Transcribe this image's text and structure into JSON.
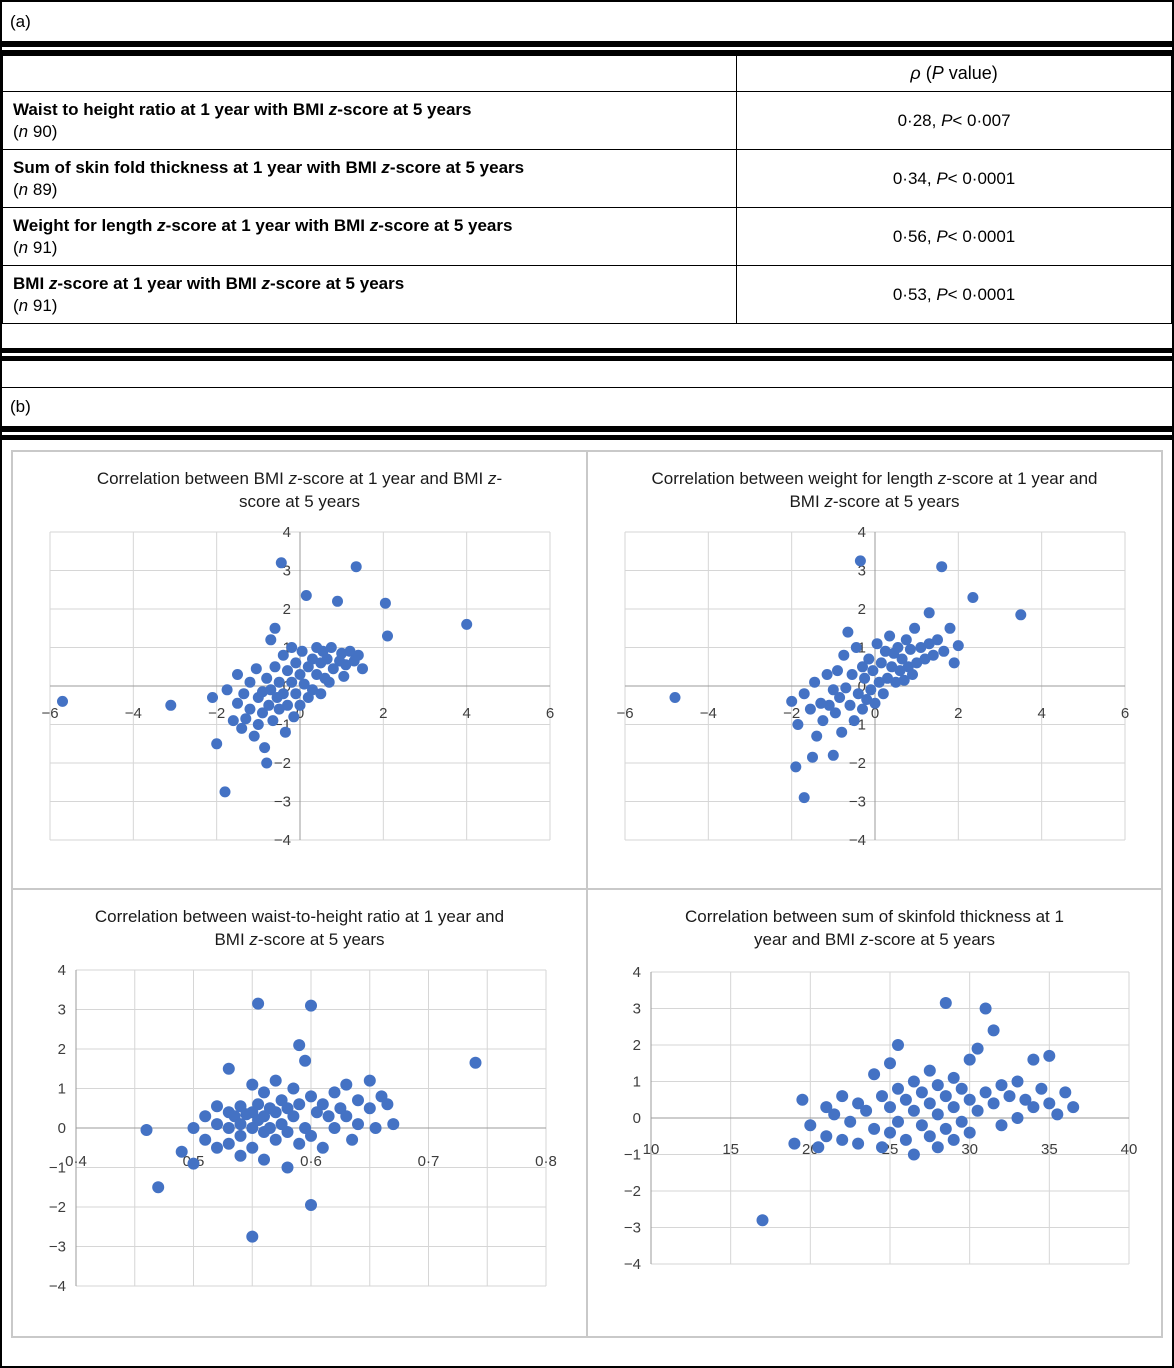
{
  "figure": {
    "panel_a_label": "(a)",
    "panel_b_label": "(b)"
  },
  "style": {
    "dot_color": "#4472C4",
    "grid_color": "#D6D6D6",
    "axis_line_color": "#9B9B9B",
    "axis_text_color": "#3d3d3d"
  },
  "table": {
    "header": "ρ (P value)",
    "rows": [
      {
        "label": "Waist to height ratio at 1 year with BMI z-score at 5 years",
        "n": "(n 90)",
        "value": "0·28, P< 0·007"
      },
      {
        "label": "Sum of skin fold thickness at 1 year with BMI z-score at 5 years",
        "n": "(n 89)",
        "value": "0·34, P< 0·0001"
      },
      {
        "label": "Weight for length z-score at 1 year with BMI z-score at 5 years",
        "n": "(n 91)",
        "value": "0·56, P< 0·0001"
      },
      {
        "label": "BMI z-score at 1 year with BMI z-score at 5 years",
        "n": "(n 91)",
        "value": "0·53, P< 0·0001"
      }
    ]
  },
  "chart_data": [
    {
      "type": "scatter",
      "title": "Correlation between BMI z-score at 1 year and BMI z-score at 5 years",
      "xlabel": "",
      "ylabel": "",
      "xlim": [
        -6,
        6
      ],
      "ylim": [
        -4,
        4
      ],
      "xticks": [
        -6,
        -4,
        -2,
        0,
        2,
        4,
        6
      ],
      "yticks": [
        -4,
        -3,
        -2,
        -1,
        0,
        1,
        2,
        3,
        4
      ],
      "grid_x_step": 2,
      "grid_y_step": 1,
      "x_tick_format": "int",
      "axis_label_position": "center",
      "grid": true,
      "legend": false,
      "points": [
        [
          -5.7,
          -0.4
        ],
        [
          -3.1,
          -0.5
        ],
        [
          -2.1,
          -0.3
        ],
        [
          -2.0,
          -1.5
        ],
        [
          -1.8,
          -2.75
        ],
        [
          -1.75,
          -0.1
        ],
        [
          -1.6,
          -0.9
        ],
        [
          -1.5,
          0.3
        ],
        [
          -1.5,
          -0.45
        ],
        [
          -1.4,
          -1.1
        ],
        [
          -1.35,
          -0.2
        ],
        [
          -1.3,
          -0.85
        ],
        [
          -1.2,
          0.1
        ],
        [
          -1.2,
          -0.6
        ],
        [
          -1.1,
          -1.3
        ],
        [
          -1.05,
          0.45
        ],
        [
          -1.0,
          -0.3
        ],
        [
          -1.0,
          -1.0
        ],
        [
          -0.9,
          -0.15
        ],
        [
          -0.9,
          -0.7
        ],
        [
          -0.85,
          -1.6
        ],
        [
          -0.8,
          0.2
        ],
        [
          -0.8,
          -2.0
        ],
        [
          -0.75,
          -0.5
        ],
        [
          -0.7,
          1.2
        ],
        [
          -0.7,
          -0.1
        ],
        [
          -0.65,
          -0.9
        ],
        [
          -0.6,
          1.5
        ],
        [
          -0.6,
          0.5
        ],
        [
          -0.55,
          -0.3
        ],
        [
          -0.45,
          3.2
        ],
        [
          -0.5,
          0.1
        ],
        [
          -0.5,
          -0.6
        ],
        [
          -0.4,
          0.8
        ],
        [
          -0.4,
          -0.2
        ],
        [
          -0.35,
          -1.2
        ],
        [
          -0.3,
          0.4
        ],
        [
          -0.3,
          -0.5
        ],
        [
          -0.2,
          1.0
        ],
        [
          -0.2,
          0.1
        ],
        [
          -0.15,
          -0.8
        ],
        [
          -0.1,
          0.6
        ],
        [
          -0.1,
          -0.2
        ],
        [
          0.0,
          0.3
        ],
        [
          0.0,
          -0.5
        ],
        [
          0.05,
          0.9
        ],
        [
          0.1,
          0.05
        ],
        [
          0.15,
          2.35
        ],
        [
          0.2,
          0.5
        ],
        [
          0.2,
          -0.3
        ],
        [
          0.3,
          0.7
        ],
        [
          0.3,
          -0.1
        ],
        [
          0.4,
          1.0
        ],
        [
          0.4,
          0.3
        ],
        [
          0.5,
          0.6
        ],
        [
          0.5,
          -0.2
        ],
        [
          0.55,
          0.9
        ],
        [
          0.6,
          0.2
        ],
        [
          0.65,
          0.7
        ],
        [
          0.7,
          0.1
        ],
        [
          0.75,
          1.0
        ],
        [
          0.8,
          0.45
        ],
        [
          0.9,
          2.2
        ],
        [
          0.95,
          0.65
        ],
        [
          1.0,
          0.85
        ],
        [
          1.05,
          0.25
        ],
        [
          1.1,
          0.55
        ],
        [
          1.2,
          0.9
        ],
        [
          1.3,
          0.65
        ],
        [
          1.35,
          3.1
        ],
        [
          1.4,
          0.8
        ],
        [
          1.5,
          0.45
        ],
        [
          2.05,
          2.15
        ],
        [
          2.1,
          1.3
        ],
        [
          4.0,
          1.6
        ]
      ]
    },
    {
      "type": "scatter",
      "title": "Correlation between weight for length z-score at 1 year and BMI z-score at 5 years",
      "xlabel": "",
      "ylabel": "",
      "xlim": [
        -6,
        6
      ],
      "ylim": [
        -4,
        4
      ],
      "xticks": [
        -6,
        -4,
        -2,
        0,
        2,
        4,
        6
      ],
      "yticks": [
        -4,
        -3,
        -2,
        -1,
        0,
        1,
        2,
        3,
        4
      ],
      "grid_x_step": 2,
      "grid_y_step": 1,
      "x_tick_format": "int",
      "axis_label_position": "center",
      "grid": true,
      "legend": false,
      "points": [
        [
          -4.8,
          -0.3
        ],
        [
          -2.0,
          -0.4
        ],
        [
          -1.9,
          -2.1
        ],
        [
          -1.85,
          -1.0
        ],
        [
          -1.7,
          -2.9
        ],
        [
          -1.7,
          -0.2
        ],
        [
          -1.55,
          -0.6
        ],
        [
          -1.5,
          -1.85
        ],
        [
          -1.45,
          0.1
        ],
        [
          -1.4,
          -1.3
        ],
        [
          -1.3,
          -0.45
        ],
        [
          -1.25,
          -0.9
        ],
        [
          -1.15,
          0.3
        ],
        [
          -1.1,
          -0.5
        ],
        [
          -1.0,
          -1.8
        ],
        [
          -1.0,
          -0.1
        ],
        [
          -0.95,
          -0.7
        ],
        [
          -0.9,
          0.4
        ],
        [
          -0.85,
          -0.3
        ],
        [
          -0.8,
          -1.2
        ],
        [
          -0.75,
          0.8
        ],
        [
          -0.7,
          -0.05
        ],
        [
          -0.65,
          1.4
        ],
        [
          -0.6,
          -0.5
        ],
        [
          -0.55,
          0.3
        ],
        [
          -0.5,
          -0.9
        ],
        [
          -0.45,
          1.0
        ],
        [
          -0.4,
          -0.2
        ],
        [
          -0.35,
          3.25
        ],
        [
          -0.3,
          0.5
        ],
        [
          -0.3,
          -0.6
        ],
        [
          -0.25,
          0.2
        ],
        [
          -0.2,
          -0.35
        ],
        [
          -0.15,
          0.7
        ],
        [
          -0.1,
          -0.1
        ],
        [
          -0.05,
          0.4
        ],
        [
          0.0,
          -0.45
        ],
        [
          0.05,
          1.1
        ],
        [
          0.1,
          0.1
        ],
        [
          0.15,
          0.6
        ],
        [
          0.2,
          -0.2
        ],
        [
          0.25,
          0.9
        ],
        [
          0.3,
          0.2
        ],
        [
          0.35,
          1.3
        ],
        [
          0.4,
          0.5
        ],
        [
          0.45,
          0.85
        ],
        [
          0.5,
          0.1
        ],
        [
          0.55,
          1.0
        ],
        [
          0.6,
          0.4
        ],
        [
          0.65,
          0.7
        ],
        [
          0.7,
          0.15
        ],
        [
          0.75,
          1.2
        ],
        [
          0.8,
          0.5
        ],
        [
          0.85,
          0.95
        ],
        [
          0.9,
          0.3
        ],
        [
          0.95,
          1.5
        ],
        [
          1.0,
          0.6
        ],
        [
          1.1,
          1.0
        ],
        [
          1.2,
          0.7
        ],
        [
          1.3,
          1.9
        ],
        [
          1.3,
          1.1
        ],
        [
          1.4,
          0.8
        ],
        [
          1.5,
          1.2
        ],
        [
          1.6,
          3.1
        ],
        [
          1.65,
          0.9
        ],
        [
          1.8,
          1.5
        ],
        [
          1.9,
          0.6
        ],
        [
          2.0,
          1.05
        ],
        [
          2.35,
          2.3
        ],
        [
          3.5,
          1.85
        ]
      ]
    },
    {
      "type": "scatter",
      "title": "Correlation between waist-to-height ratio at 1 year and BMI z-score at 5 years",
      "xlabel": "",
      "ylabel": "",
      "xlim": [
        0.4,
        0.8
      ],
      "ylim": [
        -4,
        4
      ],
      "xticks": [
        0.4,
        0.5,
        0.6,
        0.7,
        0.8
      ],
      "yticks": [
        -4,
        -3,
        -2,
        -1,
        0,
        1,
        2,
        3,
        4
      ],
      "grid_x_step": 0.05,
      "grid_y_step": 1,
      "x_tick_format": "middot",
      "axis_label_position": "left",
      "grid": true,
      "legend": false,
      "points": [
        [
          0.46,
          -0.05
        ],
        [
          0.47,
          -1.5
        ],
        [
          0.49,
          -0.6
        ],
        [
          0.5,
          0.0
        ],
        [
          0.5,
          -0.9
        ],
        [
          0.51,
          0.3
        ],
        [
          0.51,
          -0.3
        ],
        [
          0.52,
          0.55
        ],
        [
          0.52,
          0.1
        ],
        [
          0.52,
          -0.5
        ],
        [
          0.53,
          1.5
        ],
        [
          0.53,
          0.4
        ],
        [
          0.53,
          0.0
        ],
        [
          0.53,
          -0.4
        ],
        [
          0.535,
          0.3
        ],
        [
          0.54,
          0.55
        ],
        [
          0.54,
          0.1
        ],
        [
          0.54,
          -0.2
        ],
        [
          0.54,
          -0.7
        ],
        [
          0.545,
          0.35
        ],
        [
          0.55,
          1.1
        ],
        [
          0.55,
          0.4
        ],
        [
          0.55,
          0.0
        ],
        [
          0.55,
          -0.5
        ],
        [
          0.55,
          -2.75
        ],
        [
          0.555,
          3.15
        ],
        [
          0.555,
          0.6
        ],
        [
          0.555,
          0.2
        ],
        [
          0.56,
          0.9
        ],
        [
          0.56,
          0.3
        ],
        [
          0.56,
          -0.1
        ],
        [
          0.56,
          -0.8
        ],
        [
          0.565,
          0.5
        ],
        [
          0.565,
          0.0
        ],
        [
          0.57,
          1.2
        ],
        [
          0.57,
          0.4
        ],
        [
          0.57,
          -0.3
        ],
        [
          0.575,
          0.7
        ],
        [
          0.575,
          0.1
        ],
        [
          0.58,
          0.5
        ],
        [
          0.58,
          -0.1
        ],
        [
          0.58,
          -1.0
        ],
        [
          0.585,
          1.0
        ],
        [
          0.585,
          0.3
        ],
        [
          0.59,
          2.1
        ],
        [
          0.59,
          0.6
        ],
        [
          0.59,
          -0.4
        ],
        [
          0.595,
          1.7
        ],
        [
          0.595,
          0.0
        ],
        [
          0.6,
          3.1
        ],
        [
          0.6,
          0.8
        ],
        [
          0.6,
          -0.2
        ],
        [
          0.6,
          -1.95
        ],
        [
          0.605,
          0.4
        ],
        [
          0.61,
          0.6
        ],
        [
          0.61,
          -0.5
        ],
        [
          0.615,
          0.3
        ],
        [
          0.62,
          0.9
        ],
        [
          0.62,
          0.0
        ],
        [
          0.625,
          0.5
        ],
        [
          0.63,
          1.1
        ],
        [
          0.63,
          0.3
        ],
        [
          0.635,
          -0.3
        ],
        [
          0.64,
          0.7
        ],
        [
          0.64,
          0.1
        ],
        [
          0.65,
          1.2
        ],
        [
          0.65,
          0.5
        ],
        [
          0.655,
          0.0
        ],
        [
          0.66,
          0.8
        ],
        [
          0.665,
          0.6
        ],
        [
          0.67,
          0.1
        ],
        [
          0.74,
          1.65
        ]
      ]
    },
    {
      "type": "scatter",
      "title": "Correlation between sum of skinfold thickness at 1 year and BMI z-score at 5 years",
      "xlabel": "",
      "ylabel": "",
      "xlim": [
        10,
        40
      ],
      "ylim": [
        -4,
        4
      ],
      "xticks": [
        10,
        15,
        20,
        25,
        30,
        35,
        40
      ],
      "yticks": [
        -4,
        -3,
        -2,
        -1,
        0,
        1,
        2,
        3,
        4
      ],
      "grid_x_step": 5,
      "grid_y_step": 1,
      "x_tick_format": "int",
      "axis_label_position": "left",
      "grid": true,
      "legend": false,
      "points": [
        [
          17,
          -2.8
        ],
        [
          19,
          -0.7
        ],
        [
          19.5,
          0.5
        ],
        [
          20,
          -0.2
        ],
        [
          20.5,
          -0.8
        ],
        [
          21,
          0.3
        ],
        [
          21,
          -0.5
        ],
        [
          21.5,
          0.1
        ],
        [
          22,
          -0.6
        ],
        [
          22,
          0.6
        ],
        [
          22.5,
          -0.1
        ],
        [
          23,
          0.4
        ],
        [
          23,
          -0.7
        ],
        [
          23.5,
          0.2
        ],
        [
          24,
          1.2
        ],
        [
          24,
          -0.3
        ],
        [
          24.5,
          0.6
        ],
        [
          24.5,
          -0.8
        ],
        [
          25,
          1.5
        ],
        [
          25,
          0.3
        ],
        [
          25,
          -0.4
        ],
        [
          25.5,
          2.0
        ],
        [
          25.5,
          0.8
        ],
        [
          25.5,
          -0.1
        ],
        [
          26,
          0.5
        ],
        [
          26,
          -0.6
        ],
        [
          26.5,
          1.0
        ],
        [
          26.5,
          0.2
        ],
        [
          26.5,
          -1.0
        ],
        [
          27,
          0.7
        ],
        [
          27,
          -0.2
        ],
        [
          27.5,
          1.3
        ],
        [
          27.5,
          0.4
        ],
        [
          27.5,
          -0.5
        ],
        [
          28,
          0.9
        ],
        [
          28,
          0.1
        ],
        [
          28,
          -0.8
        ],
        [
          28.5,
          3.15
        ],
        [
          28.5,
          0.6
        ],
        [
          28.5,
          -0.3
        ],
        [
          29,
          1.1
        ],
        [
          29,
          0.3
        ],
        [
          29,
          -0.6
        ],
        [
          29.5,
          0.8
        ],
        [
          29.5,
          -0.1
        ],
        [
          30,
          1.6
        ],
        [
          30,
          0.5
        ],
        [
          30,
          -0.4
        ],
        [
          30.5,
          1.9
        ],
        [
          30.5,
          0.2
        ],
        [
          31,
          3.0
        ],
        [
          31,
          0.7
        ],
        [
          31.5,
          2.4
        ],
        [
          31.5,
          0.4
        ],
        [
          32,
          0.9
        ],
        [
          32,
          -0.2
        ],
        [
          32.5,
          0.6
        ],
        [
          33,
          1.0
        ],
        [
          33,
          0.0
        ],
        [
          33.5,
          0.5
        ],
        [
          34,
          1.6
        ],
        [
          34,
          0.3
        ],
        [
          34.5,
          0.8
        ],
        [
          35,
          1.7
        ],
        [
          35,
          0.4
        ],
        [
          35.5,
          0.1
        ],
        [
          36,
          0.7
        ],
        [
          36.5,
          0.3
        ]
      ]
    }
  ]
}
